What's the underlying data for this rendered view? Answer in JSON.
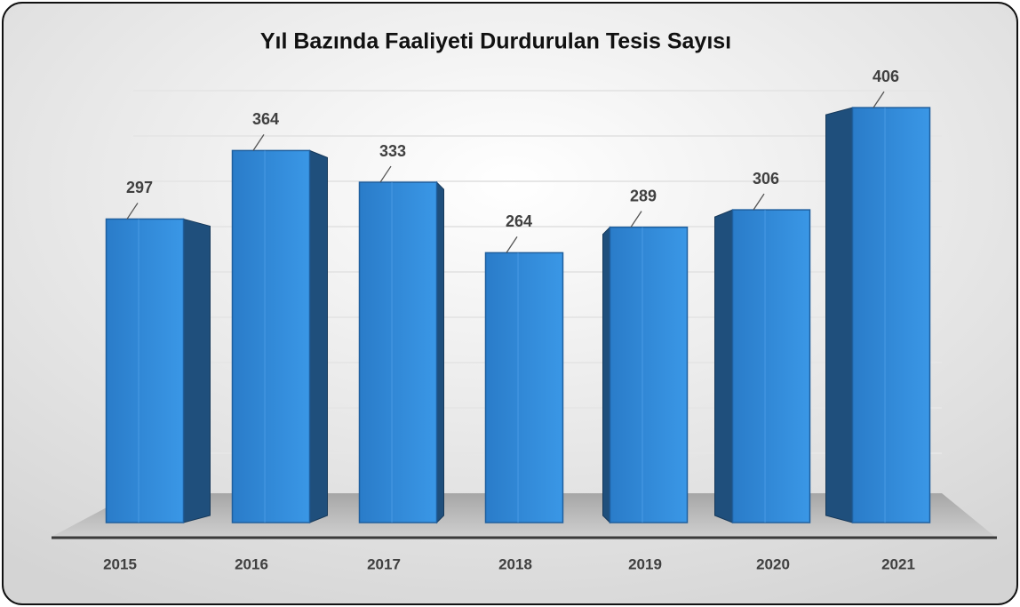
{
  "chart_data": {
    "type": "bar",
    "title": "Yıl Bazında Faaliyeti Durdurulan Tesis Sayısı",
    "categories": [
      "2015",
      "2016",
      "2017",
      "2018",
      "2019",
      "2020",
      "2021"
    ],
    "values": [
      297,
      364,
      333,
      264,
      289,
      306,
      406
    ],
    "color": "#2e86d8",
    "grid": true
  }
}
